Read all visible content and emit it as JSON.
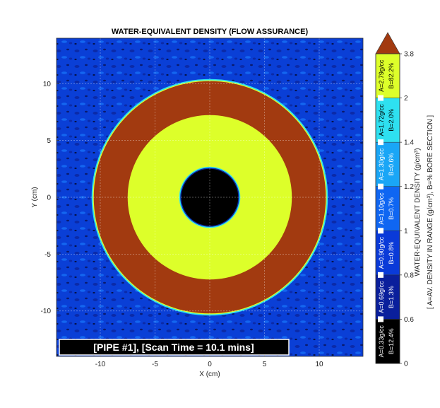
{
  "chart_data": {
    "type": "heatmap",
    "title": "WATER-EQUIVALENT DENSITY (FLOW ASSURANCE)",
    "xlabel": "X (cm)",
    "ylabel": "Y (cm)",
    "xlim": [
      -14,
      14
    ],
    "ylim": [
      -14,
      14
    ],
    "xticks": [
      -10,
      -5,
      0,
      5,
      10
    ],
    "yticks": [
      -10,
      -5,
      0,
      5,
      10
    ],
    "grid": true,
    "annotation": "[PIPE #1], [Scan Time = 10.1 mins]",
    "regions": [
      {
        "name": "background",
        "color": "#0a3fd6"
      },
      {
        "name": "outer-ring",
        "inner_radius_cm": 7.5,
        "outer_radius_cm": 10.6,
        "color": "#a23a10"
      },
      {
        "name": "deposit",
        "inner_radius_cm": 2.6,
        "outer_radius_cm": 7.5,
        "color": "#ddff2a"
      },
      {
        "name": "bore",
        "outer_radius_cm": 2.6,
        "color": "#000000"
      }
    ],
    "colorbar": {
      "label": "WATER-EQUIVALENT DENSITY (g/cm³)",
      "sublabel": "[ A=AV. DENSITY IN RANGE (g/cm³), B=% BORE SECTION ]",
      "range": [
        0,
        3.8
      ],
      "ticks": [
        "0",
        "0.6",
        "0.8",
        "1",
        "1.2",
        "1.4",
        "2",
        "3.8"
      ],
      "bins": [
        {
          "from": 0,
          "to": 0.6,
          "color": "#000000",
          "A": "A=0.33g/cc",
          "B": "B=12.4%"
        },
        {
          "from": 0.6,
          "to": 0.8,
          "color": "#0a1f9c",
          "A": "A=0.69g/cc",
          "B": "B=1.3%"
        },
        {
          "from": 0.8,
          "to": 1.0,
          "color": "#0a3ad8",
          "A": "A=0.90g/cc",
          "B": "B=0.8%"
        },
        {
          "from": 1.0,
          "to": 1.2,
          "color": "#0f66f2",
          "A": "A=1.10g/cc",
          "B": "B=0.7%"
        },
        {
          "from": 1.2,
          "to": 1.4,
          "color": "#1aa6f6",
          "A": "A=1.30g/cc",
          "B": "B=0.6%"
        },
        {
          "from": 1.4,
          "to": 2.0,
          "color": "#2ee0f0",
          "A": "A=1.72g/cc",
          "B": "B=2.0%"
        },
        {
          "from": 2.0,
          "to": 3.8,
          "color": "#ddff2a",
          "A": "A=2.79g/cc",
          "B": "B=82.2%"
        }
      ],
      "overflow_color": "#a23a10"
    }
  }
}
